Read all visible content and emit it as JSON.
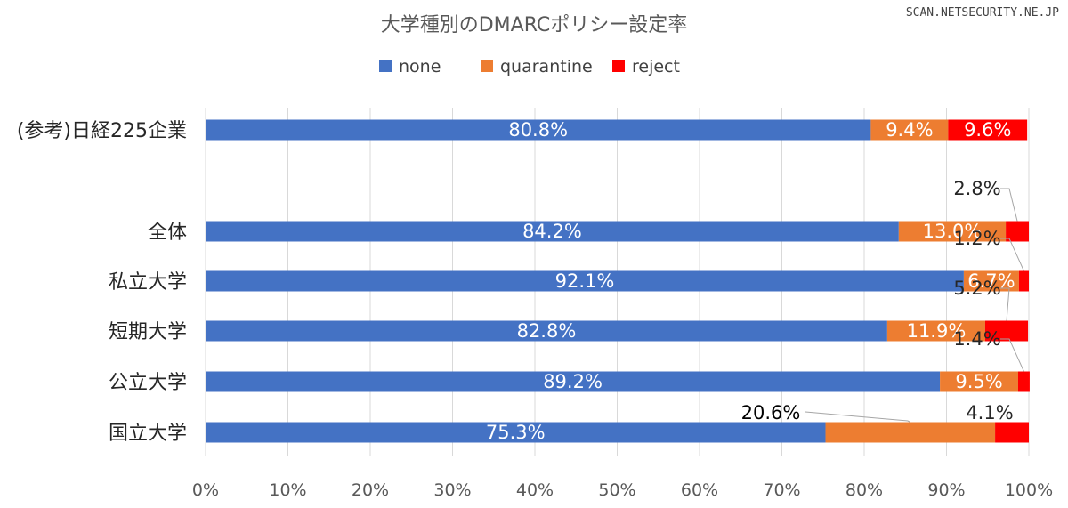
{
  "watermark": "SCAN.NETSECURITY.NE.JP",
  "chart_data": {
    "type": "bar",
    "orientation": "horizontal",
    "stacked": "percent",
    "title": "大学種別のDMARCポリシー設定率",
    "categories": [
      "(参考)日経225企業",
      "全体",
      "私立大学",
      "短期大学",
      "公立大学",
      "国立大学"
    ],
    "series": [
      {
        "name": "none",
        "color": "#4472C4",
        "values": [
          80.8,
          84.2,
          92.1,
          82.8,
          89.2,
          75.3
        ],
        "labels": [
          "80.8%",
          "84.2%",
          "92.1%",
          "82.8%",
          "89.2%",
          "75.3%"
        ]
      },
      {
        "name": "quarantine",
        "color": "#ED7D31",
        "values": [
          9.4,
          13.0,
          6.7,
          11.9,
          9.5,
          20.6
        ],
        "labels": [
          "9.4%",
          "13.0%",
          "6.7%",
          "11.9%",
          "9.5%",
          "20.6%"
        ]
      },
      {
        "name": "reject",
        "color": "#FF0000",
        "values": [
          9.6,
          2.8,
          1.2,
          5.2,
          1.4,
          4.1
        ],
        "labels": [
          "9.6%",
          "2.8%",
          "1.2%",
          "5.2%",
          "1.4%",
          "4.1%"
        ]
      }
    ],
    "xlim": [
      0,
      100
    ],
    "x_ticks": [
      "0%",
      "10%",
      "20%",
      "30%",
      "40%",
      "50%",
      "60%",
      "70%",
      "80%",
      "90%",
      "100%"
    ],
    "grid": true,
    "legend_position": "top"
  }
}
